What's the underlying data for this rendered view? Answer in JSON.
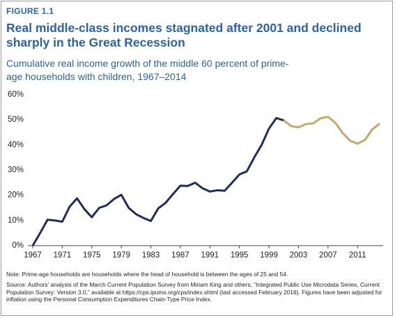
{
  "chart_data": {
    "type": "line",
    "label": "FIGURE 1.1",
    "title": "Real middle-class incomes stagnated after 2001 and declined sharply in the Great Recession",
    "subtitle": "Cumulative real income growth of the middle 60 percent of prime-age households with children, 1967–2014",
    "note": "Note: Prime-age households are households where the head of household is between the ages of 25 and 54.",
    "source": "Source: Authors’ analysis of the March Current Population Survey from Miriam King and others, “Integrated Public Use Microdata Series, Current Population Survey: Version 3.0,” available at https://cps.ipums.org/cps/index.shtml (last accessed February 2016). Figures have been adjusted for inflation using the Personal Consumption Expenditures Chain-Type Price Index.",
    "x": [
      1967,
      1968,
      1969,
      1970,
      1971,
      1972,
      1973,
      1974,
      1975,
      1976,
      1977,
      1978,
      1979,
      1980,
      1981,
      1982,
      1983,
      1984,
      1985,
      1986,
      1987,
      1988,
      1989,
      1990,
      1991,
      1992,
      1993,
      1994,
      1995,
      1996,
      1997,
      1998,
      1999,
      2000,
      2001,
      2002,
      2003,
      2004,
      2005,
      2006,
      2007,
      2008,
      2009,
      2010,
      2011,
      2012,
      2013,
      2014
    ],
    "series": [
      {
        "color": "#1f2d5c",
        "values": [
          0,
          5,
          10.3,
          10,
          9.5,
          15.5,
          18.8,
          14.5,
          11.3,
          15,
          16,
          18.5,
          20.2,
          15,
          12.5,
          11,
          9.8,
          14.8,
          17,
          20.5,
          23.8,
          23.7,
          25,
          22.8,
          21.5,
          22,
          21.8,
          25,
          28.3,
          29.5,
          35,
          40,
          46.5,
          50.7,
          49.8,
          null,
          null,
          null,
          null,
          null,
          null,
          null,
          null,
          null,
          null,
          null,
          null,
          null
        ]
      },
      {
        "color": "#c8a86b",
        "values": [
          null,
          null,
          null,
          null,
          null,
          null,
          null,
          null,
          null,
          null,
          null,
          null,
          null,
          null,
          null,
          null,
          null,
          null,
          null,
          null,
          null,
          null,
          null,
          null,
          null,
          null,
          null,
          null,
          null,
          null,
          null,
          null,
          null,
          null,
          49.8,
          47.5,
          47,
          48.3,
          48.6,
          50.6,
          51.2,
          48.8,
          44.7,
          41.7,
          40.5,
          42,
          46.2,
          48.5
        ]
      }
    ],
    "xlim": [
      1967,
      2014
    ],
    "xticks": [
      1967,
      1971,
      1975,
      1979,
      1983,
      1987,
      1991,
      1995,
      1999,
      2003,
      2007,
      2011
    ],
    "ylim": [
      0,
      60
    ],
    "yticks": [
      {
        "value": 0,
        "label": "0%"
      },
      {
        "value": 10,
        "label": "10%"
      },
      {
        "value": 20,
        "label": "20%"
      },
      {
        "value": 30,
        "label": "30%"
      },
      {
        "value": 40,
        "label": "40%"
      },
      {
        "value": 50,
        "label": "50%"
      },
      {
        "value": 60,
        "label": "60%"
      }
    ]
  }
}
